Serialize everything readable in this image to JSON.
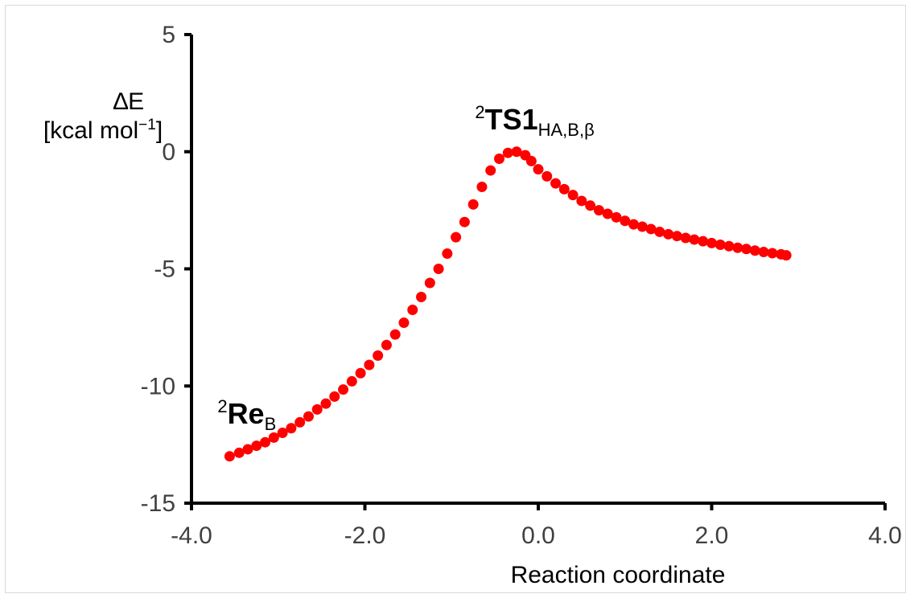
{
  "chart_data": {
    "type": "scatter",
    "title": "",
    "xlabel": "Reaction coordinate",
    "ylabel_line1": "∆E",
    "ylabel_line2_main": "[kcal mol",
    "ylabel_line2_sup": "−1",
    "ylabel_line2_end": "]",
    "xlim": [
      -4.0,
      4.0
    ],
    "ylim": [
      -15,
      5
    ],
    "x_ticks": [
      -4.0,
      -2.0,
      0.0,
      2.0,
      4.0
    ],
    "x_tick_labels": [
      "-4.0",
      "-2.0",
      "0.0",
      "2.0",
      "4.0"
    ],
    "y_ticks": [
      5,
      0,
      -5,
      -10,
      -15
    ],
    "y_tick_labels": [
      "5",
      "0",
      "-5",
      "-10",
      "-15"
    ],
    "grid": false,
    "legend": "none",
    "marker_color": "#ff0000",
    "axis_color": "#000000",
    "series": [
      {
        "x": [
          -3.56,
          -3.45,
          -3.35,
          -3.25,
          -3.15,
          -3.05,
          -2.95,
          -2.85,
          -2.75,
          -2.65,
          -2.55,
          -2.45,
          -2.35,
          -2.25,
          -2.15,
          -2.05,
          -1.95,
          -1.85,
          -1.75,
          -1.65,
          -1.55,
          -1.45,
          -1.35,
          -1.25,
          -1.15,
          -1.05,
          -0.95,
          -0.85,
          -0.75,
          -0.65,
          -0.55,
          -0.45,
          -0.35,
          -0.25,
          -0.15,
          -0.08,
          0.0,
          0.1,
          0.2,
          0.3,
          0.4,
          0.5,
          0.6,
          0.7,
          0.8,
          0.9,
          1.0,
          1.1,
          1.2,
          1.3,
          1.4,
          1.5,
          1.6,
          1.7,
          1.8,
          1.9,
          2.0,
          2.1,
          2.2,
          2.3,
          2.4,
          2.5,
          2.6,
          2.7,
          2.8,
          2.86
        ],
        "y": [
          -13.0,
          -12.85,
          -12.7,
          -12.55,
          -12.4,
          -12.2,
          -12.0,
          -11.8,
          -11.55,
          -11.3,
          -11.0,
          -10.75,
          -10.45,
          -10.15,
          -9.8,
          -9.45,
          -9.1,
          -8.7,
          -8.25,
          -7.8,
          -7.3,
          -6.75,
          -6.2,
          -5.6,
          -5.0,
          -4.35,
          -3.65,
          -3.0,
          -2.25,
          -1.5,
          -0.8,
          -0.3,
          -0.05,
          0.0,
          -0.15,
          -0.4,
          -0.75,
          -1.05,
          -1.35,
          -1.6,
          -1.85,
          -2.1,
          -2.3,
          -2.5,
          -2.65,
          -2.8,
          -2.95,
          -3.1,
          -3.2,
          -3.3,
          -3.42,
          -3.52,
          -3.6,
          -3.68,
          -3.75,
          -3.82,
          -3.9,
          -3.97,
          -4.03,
          -4.1,
          -4.15,
          -4.22,
          -4.28,
          -4.33,
          -4.38,
          -4.42
        ]
      }
    ],
    "annotations": [
      {
        "x": -3.7,
        "y": -11.6,
        "anchor": "start",
        "sup": "2",
        "main": "Re",
        "sub": "B"
      },
      {
        "x": -0.73,
        "y": 0.95,
        "anchor": "start",
        "sup": "2",
        "main": "TS1",
        "sub": "HA,B,β"
      }
    ]
  }
}
